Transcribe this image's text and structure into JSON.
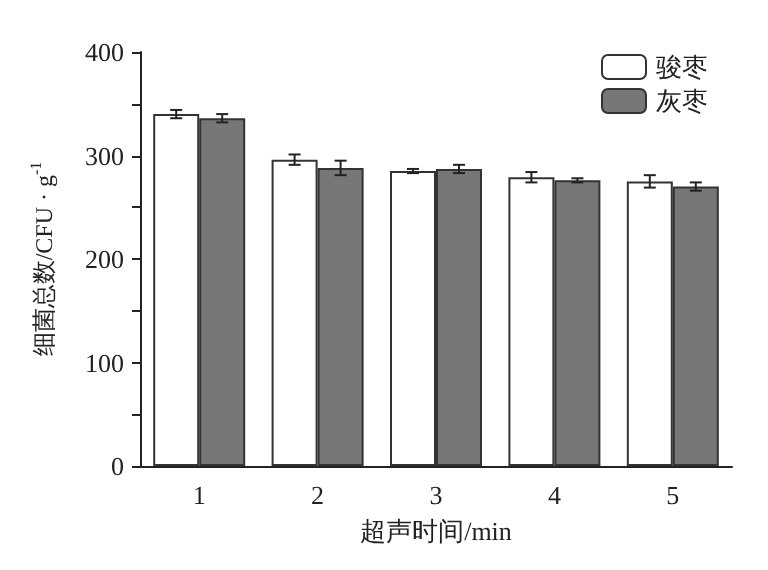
{
  "chart_data": {
    "type": "bar",
    "xlabel": "超声时间/min",
    "ylabel": "细菌总数/CFU · g$^{-1}$",
    "categories": [
      "1",
      "2",
      "3",
      "4",
      "5"
    ],
    "series": [
      {
        "name": "骏枣",
        "color": "#ffffff",
        "values": [
          340,
          296,
          285,
          279,
          275
        ],
        "errors": [
          4,
          5,
          2,
          5,
          6
        ]
      },
      {
        "name": "灰枣",
        "color": "#777777",
        "values": [
          336,
          288,
          287,
          276,
          270
        ],
        "errors": [
          4,
          7,
          4,
          2,
          4
        ]
      }
    ],
    "ylim": [
      0,
      400
    ],
    "yticks": [
      0,
      {
        "value": 50,
        "label": null
      },
      100,
      {
        "value": 150,
        "label": null
      },
      200,
      {
        "value": 250,
        "label": null
      },
      300,
      {
        "value": 350,
        "label": null
      },
      400
    ],
    "grid": false,
    "legend": "top right"
  }
}
